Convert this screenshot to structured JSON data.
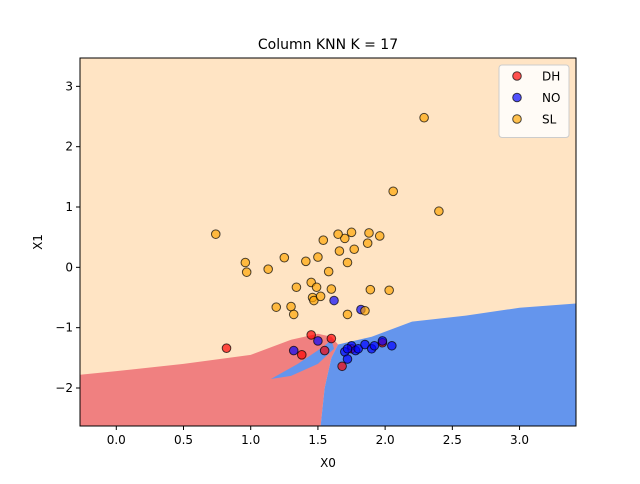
{
  "chart_data": {
    "type": "scatter",
    "title": "Column KNN K = 17",
    "xlabel": "X0",
    "ylabel": "X1",
    "xlim": [
      -0.27,
      3.42
    ],
    "ylim": [
      -2.63,
      3.47
    ],
    "grid": false,
    "legend_position": "top-right",
    "x_ticks": [
      0.0,
      0.5,
      1.0,
      1.5,
      2.0,
      2.5,
      3.0
    ],
    "x_tick_labels": [
      "0.0",
      "0.5",
      "1.0",
      "1.5",
      "2.0",
      "2.5",
      "3.0"
    ],
    "y_ticks": [
      -2,
      -1,
      0,
      1,
      2,
      3
    ],
    "y_tick_labels": [
      "−2",
      "−1",
      "0",
      "1",
      "2",
      "3"
    ],
    "regions": {
      "SL": {
        "color": "#ffe4c4"
      },
      "DH": {
        "color": "#f08080"
      },
      "NO": {
        "color": "#6495ed"
      },
      "DH_boundary": [
        [
          -0.27,
          -1.78
        ],
        [
          0.0,
          -1.72
        ],
        [
          0.5,
          -1.6
        ],
        [
          1.0,
          -1.45
        ],
        [
          1.3,
          -1.2
        ],
        [
          1.5,
          -1.1
        ],
        [
          1.6,
          -1.15
        ],
        [
          1.65,
          -1.28
        ],
        [
          1.6,
          -1.5
        ],
        [
          1.55,
          -2.0
        ],
        [
          1.52,
          -2.63
        ],
        [
          -0.27,
          -2.63
        ]
      ],
      "NO_boundary": [
        [
          1.52,
          -2.63
        ],
        [
          1.55,
          -2.0
        ],
        [
          1.6,
          -1.5
        ],
        [
          1.65,
          -1.28
        ],
        [
          1.9,
          -1.15
        ],
        [
          2.2,
          -0.9
        ],
        [
          2.6,
          -0.8
        ],
        [
          3.0,
          -0.67
        ],
        [
          3.42,
          -0.6
        ],
        [
          3.42,
          -2.63
        ]
      ],
      "NO_notch": [
        [
          1.15,
          -1.85
        ],
        [
          1.35,
          -1.6
        ],
        [
          1.45,
          -1.45
        ],
        [
          1.55,
          -1.3
        ],
        [
          1.6,
          -1.2
        ],
        [
          1.62,
          -1.35
        ],
        [
          1.5,
          -1.6
        ],
        [
          1.3,
          -1.8
        ]
      ]
    },
    "series": [
      {
        "name": "DH",
        "color": "#ff0000",
        "points": [
          [
            0.82,
            -1.34
          ],
          [
            1.45,
            -1.12
          ],
          [
            1.38,
            -1.45
          ],
          [
            1.6,
            -1.18
          ],
          [
            1.55,
            -1.38
          ],
          [
            1.68,
            -1.64
          ],
          [
            1.75,
            -1.35
          ],
          [
            1.98,
            -1.25
          ]
        ]
      },
      {
        "name": "NO",
        "color": "#0000ff",
        "points": [
          [
            1.32,
            -1.38
          ],
          [
            1.5,
            -1.22
          ],
          [
            1.62,
            -0.55
          ],
          [
            1.7,
            -1.4
          ],
          [
            1.72,
            -1.52
          ],
          [
            1.75,
            -1.3
          ],
          [
            1.78,
            -1.38
          ],
          [
            1.8,
            -1.35
          ],
          [
            1.85,
            -1.28
          ],
          [
            1.9,
            -1.35
          ],
          [
            1.92,
            -1.3
          ],
          [
            2.05,
            -1.3
          ],
          [
            1.98,
            -1.22
          ],
          [
            1.72,
            -1.35
          ],
          [
            1.82,
            -0.7
          ]
        ]
      },
      {
        "name": "SL",
        "color": "#ffa500",
        "points": [
          [
            0.74,
            0.55
          ],
          [
            0.96,
            0.08
          ],
          [
            0.97,
            -0.08
          ],
          [
            1.13,
            -0.03
          ],
          [
            1.19,
            -0.66
          ],
          [
            1.25,
            0.16
          ],
          [
            1.3,
            -0.65
          ],
          [
            1.32,
            -0.78
          ],
          [
            1.34,
            -0.33
          ],
          [
            1.41,
            0.1
          ],
          [
            1.45,
            -0.25
          ],
          [
            1.46,
            -0.5
          ],
          [
            1.47,
            -0.55
          ],
          [
            1.49,
            -0.33
          ],
          [
            1.5,
            0.17
          ],
          [
            1.52,
            -0.48
          ],
          [
            1.54,
            0.45
          ],
          [
            1.58,
            -0.07
          ],
          [
            1.6,
            -0.36
          ],
          [
            1.66,
            0.27
          ],
          [
            1.7,
            0.48
          ],
          [
            1.72,
            0.08
          ],
          [
            1.72,
            -0.78
          ],
          [
            1.75,
            0.58
          ],
          [
            1.77,
            0.3
          ],
          [
            1.85,
            -0.72
          ],
          [
            1.87,
            0.4
          ],
          [
            1.88,
            0.57
          ],
          [
            1.89,
            -0.37
          ],
          [
            1.96,
            0.52
          ],
          [
            2.03,
            -0.38
          ],
          [
            2.06,
            1.26
          ],
          [
            2.29,
            2.48
          ],
          [
            2.4,
            0.93
          ],
          [
            1.65,
            0.55
          ]
        ]
      }
    ]
  }
}
